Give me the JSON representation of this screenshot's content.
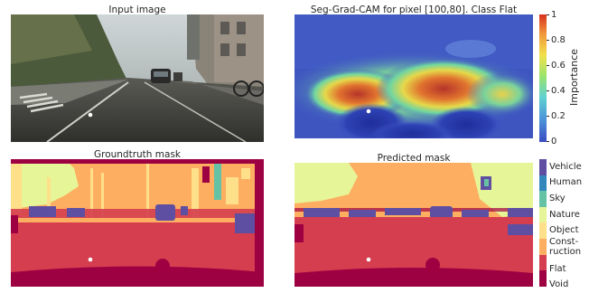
{
  "panels": {
    "input": {
      "title": "Input image"
    },
    "cam": {
      "title": "Seg-Grad-CAM for pixel [100,80]. Class Flat"
    },
    "gt": {
      "title": "Groundtruth mask"
    },
    "pred": {
      "title": "Predicted mask"
    }
  },
  "importance_bar": {
    "label": "Importance",
    "ticks": [
      "1",
      "0.8",
      "0.6",
      "0.4",
      "0.2",
      "0"
    ],
    "colors": [
      "#3b4cc0",
      "#4a90d9",
      "#5fd1d1",
      "#9be46b",
      "#f1e14b",
      "#f29b3a",
      "#d7301f"
    ]
  },
  "class_bar": {
    "classes": [
      {
        "name": "Vehicle",
        "color": "#5e4fa2"
      },
      {
        "name": "Human",
        "color": "#3288bd"
      },
      {
        "name": "Sky",
        "color": "#66c2a5"
      },
      {
        "name": "Nature",
        "color": "#e6f598"
      },
      {
        "name": "Object",
        "color": "#fee08b"
      },
      {
        "name": "Const-\nruction",
        "color": "#fdae61"
      },
      {
        "name": "Flat",
        "color": "#d53e4f"
      },
      {
        "name": "Void",
        "color": "#9e0142"
      }
    ]
  },
  "chart_data": [
    {
      "type": "heatmap",
      "title": "Input image"
    },
    {
      "type": "heatmap",
      "title": "Seg-Grad-CAM for pixel [100,80]. Class Flat",
      "colorbar_label": "Importance",
      "vmin": 0,
      "vmax": 1,
      "ticks": [
        0,
        0.2,
        0.4,
        0.6,
        0.8,
        1
      ]
    },
    {
      "type": "heatmap",
      "title": "Groundtruth mask"
    },
    {
      "type": "heatmap",
      "title": "Predicted mask",
      "classes": [
        "Vehicle",
        "Human",
        "Sky",
        "Nature",
        "Object",
        "Const-ruction",
        "Flat",
        "Void"
      ]
    }
  ]
}
